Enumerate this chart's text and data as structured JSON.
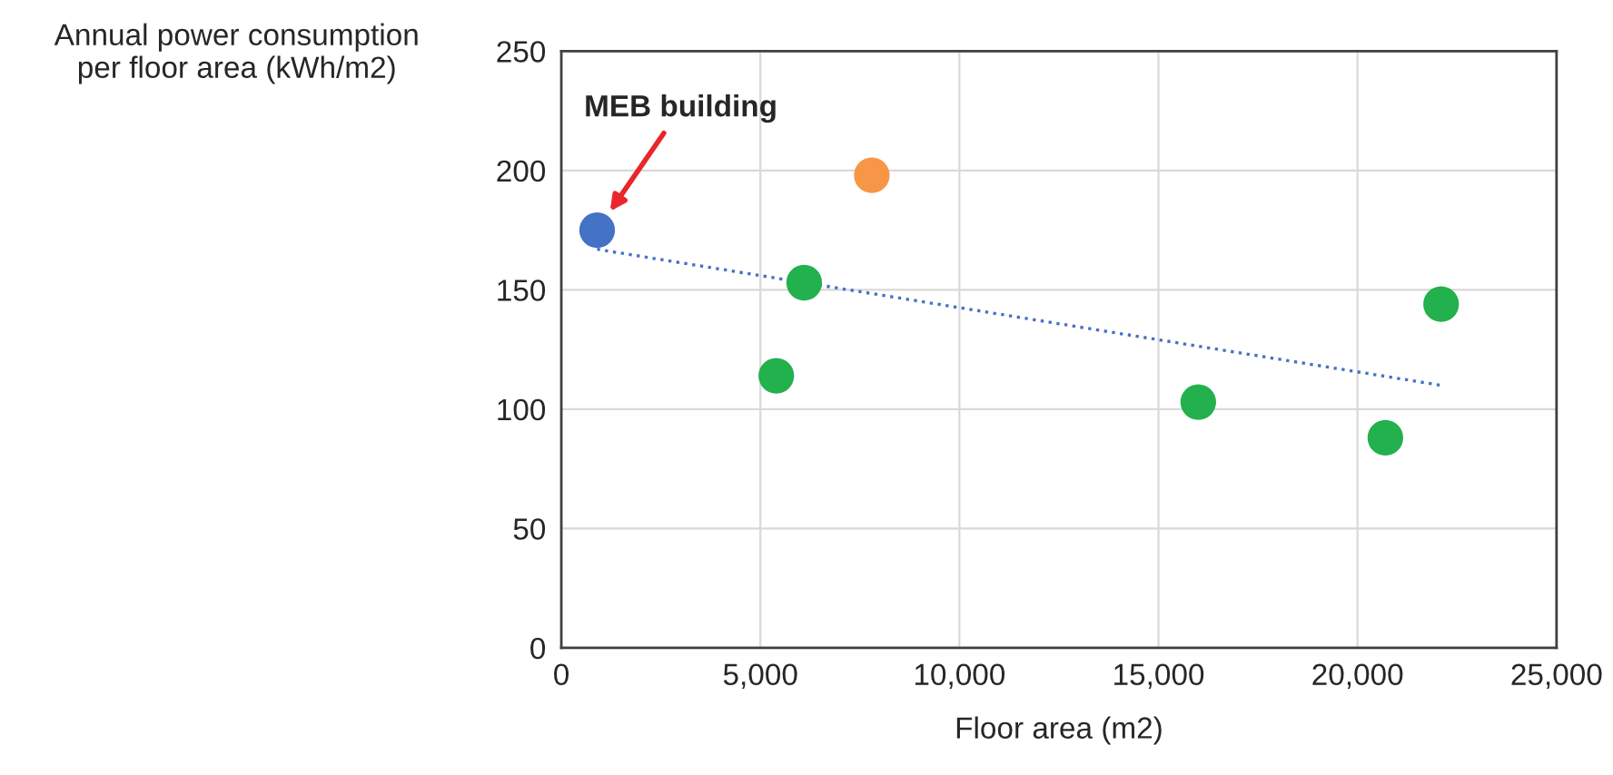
{
  "chart_data": {
    "type": "scatter",
    "xlabel": "Floor area (m2)",
    "ylabel": "Annual power consumption\nper floor area (kWh/m2)",
    "series": [
      {
        "color": "#4472c4",
        "x": [
          900
        ],
        "values": [
          175
        ]
      },
      {
        "color": "#f79646",
        "x": [
          7800
        ],
        "values": [
          198
        ]
      },
      {
        "color": "#22b14c",
        "x": [
          6100,
          5400,
          16000,
          20700,
          22100
        ],
        "values": [
          153,
          114,
          103,
          88,
          144
        ]
      },
      {
        "type": "line",
        "color": "#4472c4",
        "line_style": "dotted",
        "marker": "none",
        "x": [
          900,
          22100
        ],
        "values": [
          167,
          110
        ]
      }
    ],
    "annotations": [
      "MEB building"
    ],
    "xlim": [
      0,
      25000
    ],
    "xticks": [
      {
        "value": 0,
        "label": "0"
      },
      {
        "value": 5000,
        "label": "5,000"
      },
      {
        "value": 10000,
        "label": "10,000"
      },
      {
        "value": 15000,
        "label": "15,000"
      },
      {
        "value": 20000,
        "label": "20,000"
      },
      {
        "value": 25000,
        "label": "25,000"
      }
    ],
    "ylim": [
      0,
      250
    ],
    "yticks": [
      0,
      50,
      100,
      150,
      200,
      250
    ],
    "grid": true,
    "marker": "circle"
  }
}
